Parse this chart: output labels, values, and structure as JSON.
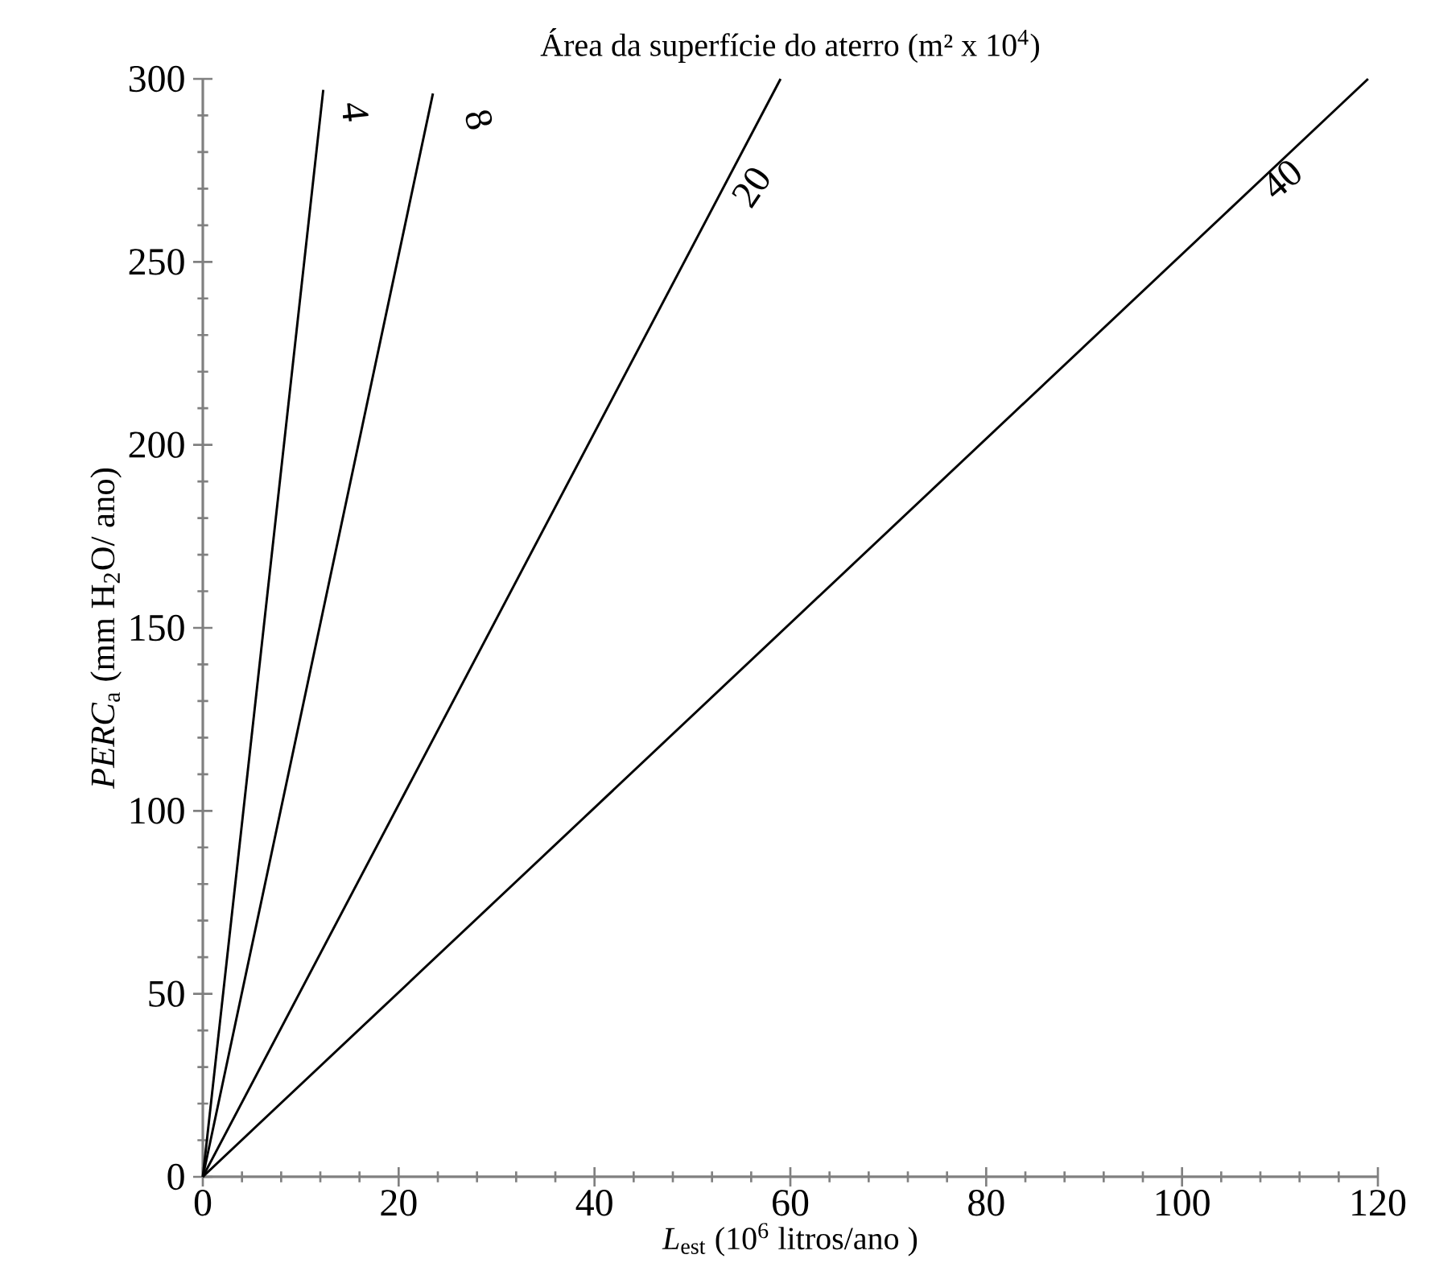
{
  "chart_data": {
    "type": "line",
    "title": "Área da superfície do aterro (m² x 10$^{4}$)",
    "xlabel": "*L*$_{est}$ (10$^{6}$ litros/ano )",
    "ylabel": "*PERC*$_{a}$ (mm H$_{2}$O/ ano)",
    "xlim": [
      0,
      120
    ],
    "ylim": [
      0,
      300
    ],
    "xticks": [
      0,
      20,
      40,
      60,
      80,
      100,
      120
    ],
    "yticks": [
      0,
      50,
      100,
      150,
      200,
      250,
      300
    ],
    "series": [
      {
        "color": "#000000",
        "x": [
          0,
          12.3
        ],
        "values": [
          0,
          297
        ]
      },
      {
        "color": "#000000",
        "x": [
          0,
          23.5
        ],
        "values": [
          0,
          296
        ]
      },
      {
        "color": "#000000",
        "x": [
          0,
          59
        ],
        "values": [
          0,
          300
        ]
      },
      {
        "color": "#000000",
        "x": [
          0,
          119
        ],
        "values": [
          0,
          300
        ]
      }
    ],
    "annotations": [
      "4",
      "8",
      "20",
      "40"
    ]
  }
}
